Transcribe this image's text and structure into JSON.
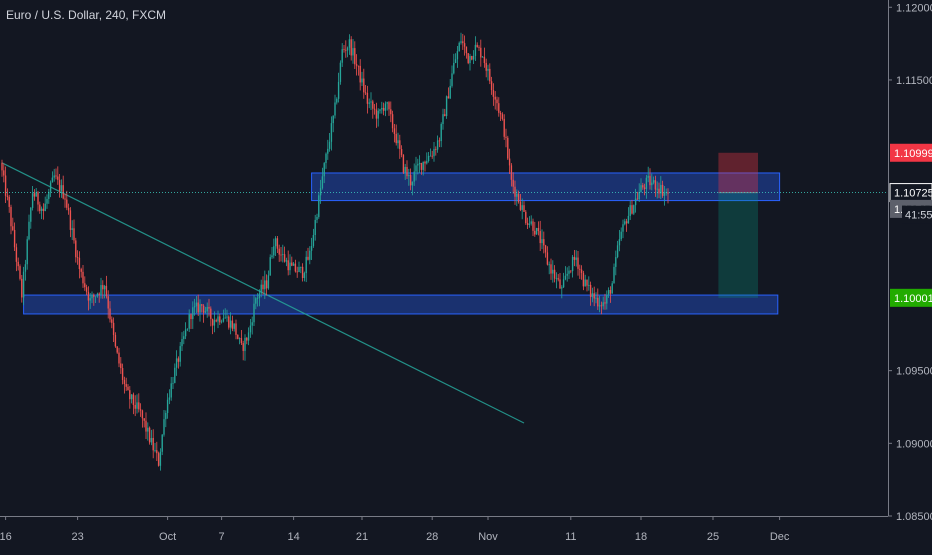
{
  "chart_data": {
    "type": "candlestick",
    "title": "Euro / U.S. Dollar, 240, FXCM",
    "price_range": [
      1.085,
      1.1205
    ],
    "y_ticks": [
      {
        "value": 1.12,
        "label": "1.12000"
      },
      {
        "value": 1.115,
        "label": "1.11500"
      },
      {
        "value": 1.095,
        "label": "1.09500"
      },
      {
        "value": 1.09,
        "label": "1.09000"
      },
      {
        "value": 1.085,
        "label": "1.08500"
      }
    ],
    "x_ticks": [
      {
        "bar": 2,
        "label": "16"
      },
      {
        "bar": 42,
        "label": "23"
      },
      {
        "bar": 92,
        "label": "Oct"
      },
      {
        "bar": 122,
        "label": "7"
      },
      {
        "bar": 162,
        "label": "14"
      },
      {
        "bar": 200,
        "label": "21"
      },
      {
        "bar": 239,
        "label": "28"
      },
      {
        "bar": 270,
        "label": "Nov"
      },
      {
        "bar": 316,
        "label": "11"
      },
      {
        "bar": 355,
        "label": "18"
      },
      {
        "bar": 395,
        "label": "25"
      },
      {
        "bar": 432,
        "label": "Dec"
      }
    ],
    "price_tags": [
      {
        "value": 1.10999,
        "label": "1.10999",
        "color": "#f23645"
      },
      {
        "value": 1.10725,
        "label": "1.10725",
        "color": "#131722",
        "border": "#ffffff"
      },
      {
        "value": 1.10716,
        "label": "1.10716",
        "color": "#5d606b"
      },
      {
        "value": 1.10001,
        "label": "1.10001",
        "color": "#22ab00"
      }
    ],
    "countdown": "41:55",
    "current_price": 1.10725,
    "candle_colors": {
      "up": "#26a69a",
      "down": "#ef5350"
    },
    "path_points": [
      [
        0,
        1.1093
      ],
      [
        5,
        1.106
      ],
      [
        12,
        1.1002
      ],
      [
        18,
        1.1073
      ],
      [
        24,
        1.106
      ],
      [
        30,
        1.1083
      ],
      [
        36,
        1.107
      ],
      [
        44,
        1.102
      ],
      [
        50,
        1.0998
      ],
      [
        58,
        1.101
      ],
      [
        64,
        1.0965
      ],
      [
        70,
        1.0935
      ],
      [
        78,
        1.092
      ],
      [
        84,
        1.09
      ],
      [
        88,
        1.0887
      ],
      [
        92,
        1.0925
      ],
      [
        96,
        1.0945
      ],
      [
        100,
        1.0963
      ],
      [
        106,
        1.099
      ],
      [
        112,
        1.0995
      ],
      [
        118,
        1.0985
      ],
      [
        124,
        1.0988
      ],
      [
        130,
        1.098
      ],
      [
        134,
        1.0965
      ],
      [
        138,
        1.0975
      ],
      [
        142,
        1.1
      ],
      [
        148,
        1.101
      ],
      [
        152,
        1.104
      ],
      [
        156,
        1.103
      ],
      [
        162,
        1.102
      ],
      [
        168,
        1.1018
      ],
      [
        172,
        1.103
      ],
      [
        176,
        1.106
      ],
      [
        180,
        1.109
      ],
      [
        186,
        1.113
      ],
      [
        190,
        1.117
      ],
      [
        194,
        1.1175
      ],
      [
        198,
        1.116
      ],
      [
        204,
        1.1135
      ],
      [
        210,
        1.1125
      ],
      [
        214,
        1.1135
      ],
      [
        220,
        1.111
      ],
      [
        224,
        1.109
      ],
      [
        228,
        1.108
      ],
      [
        232,
        1.109
      ],
      [
        236,
        1.1095
      ],
      [
        240,
        1.11
      ],
      [
        244,
        1.111
      ],
      [
        248,
        1.1135
      ],
      [
        252,
        1.116
      ],
      [
        256,
        1.1178
      ],
      [
        260,
        1.1165
      ],
      [
        264,
        1.1172
      ],
      [
        268,
        1.1168
      ],
      [
        272,
        1.115
      ],
      [
        276,
        1.1135
      ],
      [
        280,
        1.1115
      ],
      [
        284,
        1.108
      ],
      [
        288,
        1.1068
      ],
      [
        292,
        1.1055
      ],
      [
        296,
        1.105
      ],
      [
        300,
        1.104
      ],
      [
        304,
        1.1025
      ],
      [
        308,
        1.1015
      ],
      [
        312,
        1.1005
      ],
      [
        316,
        1.102
      ],
      [
        320,
        1.1028
      ],
      [
        324,
        1.1012
      ],
      [
        328,
        1.1003
      ],
      [
        332,
        1.0998
      ],
      [
        336,
        1.0996
      ],
      [
        340,
        1.101
      ],
      [
        344,
        1.104
      ],
      [
        348,
        1.1055
      ],
      [
        352,
        1.1065
      ],
      [
        356,
        1.1075
      ],
      [
        360,
        1.108
      ],
      [
        364,
        1.1078
      ],
      [
        368,
        1.1074
      ],
      [
        370,
        1.1072
      ]
    ],
    "last_bar": 370,
    "zones": [
      {
        "bar_start": 172,
        "bar_end": 432,
        "top": 1.1086,
        "bottom": 1.1067
      },
      {
        "bar_start": 12,
        "bar_end": 431,
        "top": 1.1002,
        "bottom": 1.0989
      }
    ],
    "trendline": {
      "start": [
        0,
        1.1093
      ],
      "end": [
        290,
        1.0914
      ]
    },
    "position": {
      "bar_start": 398,
      "bar_end": 420,
      "entry": 1.10725,
      "stop": 1.10999,
      "target": 1.10001
    }
  }
}
